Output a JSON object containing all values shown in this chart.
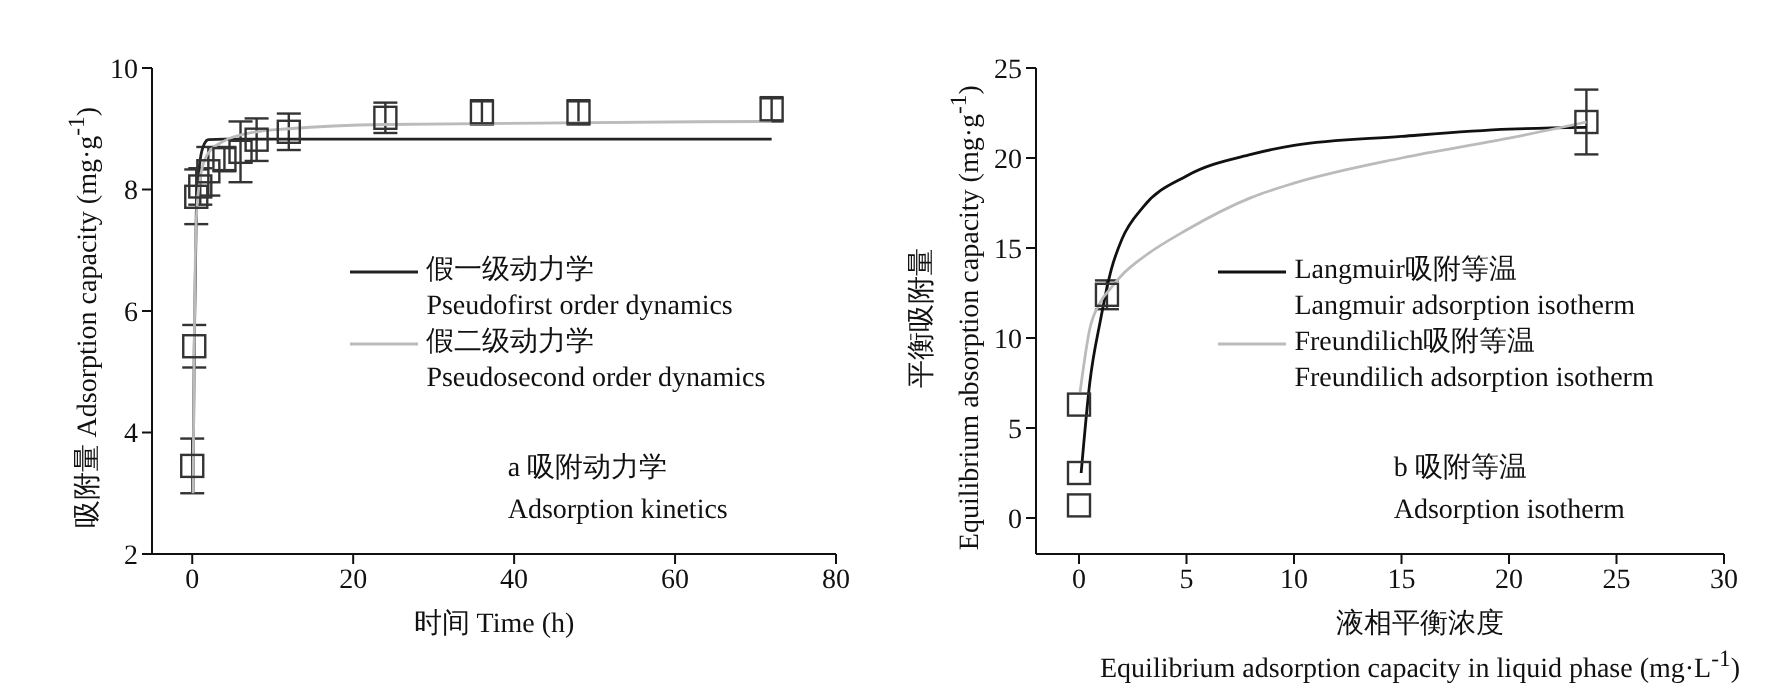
{
  "chart_data": [
    {
      "type": "line",
      "xlabel": "时间 Time (h)",
      "ylabel": "吸附量 Adsorption capacity (mg·g$^{-1}$)",
      "xlim": [
        -5,
        80
      ],
      "xticks": [
        0,
        20,
        40,
        60,
        80
      ],
      "ylim": [
        2,
        10
      ],
      "yticks": [
        2,
        4,
        6,
        8,
        10
      ],
      "legend": "center right",
      "line_style": "solid",
      "annotations": [
        "a 吸附动力学\nAdsorption kinetics"
      ],
      "series": [
        {
          "type": "scatter",
          "marker": "square",
          "color": "#333333",
          "x": [
            0,
            0.25,
            0.5,
            1,
            2,
            4,
            6,
            8,
            12,
            24,
            36,
            48,
            72
          ],
          "values": [
            3.45,
            5.42,
            7.88,
            8.05,
            8.3,
            8.5,
            8.62,
            8.82,
            8.95,
            9.18,
            9.27,
            9.27,
            9.32
          ],
          "errors": [
            0.45,
            0.35,
            0.45,
            0.3,
            0.4,
            0.2,
            0.5,
            0.35,
            0.3,
            0.25,
            0.2,
            0.2,
            0.2
          ]
        },
        {
          "marker": "none",
          "name": "假一级动力学\nPseudofirst order dynamics",
          "color": "#222222",
          "x": [
            0.1,
            0.25,
            0.5,
            1,
            1.5,
            2,
            4,
            72
          ],
          "values": [
            3.0,
            5.4,
            7.6,
            8.5,
            8.75,
            8.82,
            8.83,
            8.83
          ]
        },
        {
          "marker": "none",
          "name": "假二级动力学\nPseudosecond order dynamics",
          "color": "#bbbbbb",
          "x": [
            0.1,
            0.25,
            0.5,
            1,
            2,
            4,
            8,
            12,
            24,
            72
          ],
          "values": [
            3.0,
            5.4,
            7.5,
            8.2,
            8.6,
            8.8,
            8.95,
            9.0,
            9.07,
            9.12
          ]
        }
      ]
    },
    {
      "type": "line",
      "xlabel": "液相平衡浓度\nEquilibrium adsorption capacity in liquid phase (mg·L$^{-1}$)",
      "ylabel": "平衡吸附量\nEquilibrium absorption capacity (mg·g$^{-1}$)",
      "xlim": [
        -2,
        30
      ],
      "xticks": [
        0,
        5,
        10,
        15,
        20,
        25,
        30
      ],
      "ylim": [
        -2,
        25
      ],
      "yticks": [
        0,
        5,
        10,
        15,
        20,
        25
      ],
      "legend": "center right",
      "line_style": "solid",
      "annotations": [
        "b 吸附等温\nAdsorption isotherm"
      ],
      "series": [
        {
          "type": "scatter",
          "marker": "square",
          "color": "#333333",
          "x": [
            0,
            0,
            0,
            1.3,
            23.6
          ],
          "values": [
            0.7,
            2.5,
            6.3,
            12.4,
            22.0
          ],
          "errors": [
            null,
            null,
            null,
            0.8,
            1.8
          ]
        },
        {
          "marker": "none",
          "name": "Langmuir吸附等温\nLangmuir adsorption isotherm",
          "color": "#111111",
          "x": [
            0.1,
            0.5,
            1,
            1.5,
            2,
            3,
            5,
            8,
            10,
            15,
            20,
            23.6
          ],
          "values": [
            2.5,
            7.5,
            11,
            13.8,
            15.5,
            17.3,
            19.0,
            20.2,
            20.7,
            21.2,
            21.6,
            21.7
          ]
        },
        {
          "marker": "none",
          "name": "Freundilich吸附等温\nFreundilich adsorption isotherm",
          "color": "#bbbbbb",
          "x": [
            0.05,
            0.5,
            1,
            1.5,
            2,
            3,
            5,
            8,
            10,
            15,
            20,
            23.6
          ],
          "values": [
            7.0,
            10.5,
            12.0,
            12.8,
            13.5,
            14.5,
            16.0,
            17.8,
            18.6,
            20.0,
            21.1,
            22.0
          ]
        }
      ]
    }
  ]
}
